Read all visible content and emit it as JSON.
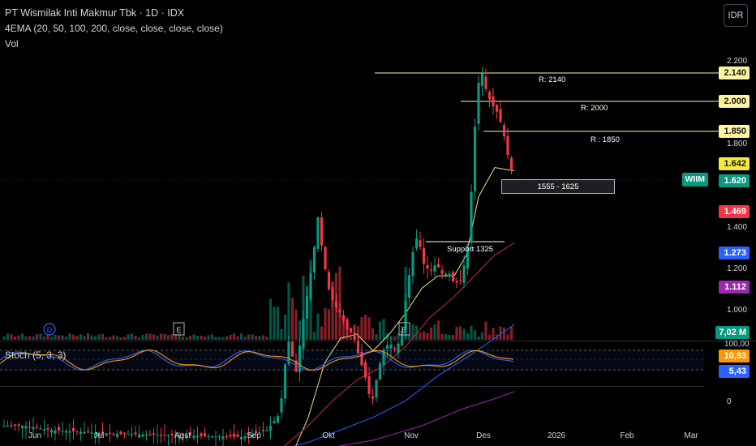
{
  "header": {
    "title": "PT Wismilak Inti Makmur Tbk · 1D · IDX",
    "indicator_ema": "4EMA (20, 50, 100, 200, close, close, close, close)",
    "indicator_vol": "Vol",
    "currency": "IDR"
  },
  "price_axis": {
    "ticks": [
      "2.200",
      "1.800",
      "1.400",
      "1.200",
      "1.000"
    ],
    "badges": {
      "r2140": "2.140",
      "r2000": "2.000",
      "r1850": "1.850",
      "ema20": "1.642",
      "last": "1.620",
      "ema50": "1.469",
      "ema100": "1.273",
      "ema200": "1.112",
      "volume": "7,02 M"
    },
    "ticker": "WIIM"
  },
  "levels": {
    "r2140_label": "R: 2140",
    "r2000_label": "R: 2000",
    "r1850_label": "R : 1850",
    "support_label": "Support 1325",
    "zone_label": "1555 - 1625"
  },
  "stoch": {
    "title": "Stoch (5, 3, 3)",
    "axis_top": "100,00",
    "axis_bottom": "0",
    "k_badge": "10,93",
    "d_badge": "5,43"
  },
  "time_axis": [
    "Jun",
    "Jul",
    "Agst",
    "Sep",
    "Okt",
    "Nov",
    "Des",
    "2026",
    "Feb",
    "Mar"
  ],
  "event_markers": [
    {
      "label": "D"
    },
    {
      "label": "E"
    },
    {
      "label": "E"
    }
  ],
  "colors": {
    "up": "#089981",
    "down": "#f23645",
    "ema20": "#e6e48a",
    "ema50": "#c72b3c",
    "ema100": "#2962ff",
    "ema200": "#9c27b0",
    "stoch_k": "#2962ff",
    "stoch_d": "#ff9800",
    "resistance": "#fff59d"
  },
  "chart_data": {
    "type": "candlestick",
    "symbol": "WIIM",
    "interval": "1D",
    "last_price": 1620,
    "resistance_levels": [
      2140,
      2000,
      1850
    ],
    "support_level": 1325,
    "zone": [
      1555,
      1625
    ],
    "ema": {
      "20": 1642,
      "50": 1469,
      "100": 1273,
      "200": 1112
    },
    "volume_last": "7,02 M",
    "stoch": {
      "k": 10.93,
      "d": 5.43
    },
    "y_ticks": [
      2200,
      1800,
      1400,
      1200,
      1000
    ]
  }
}
